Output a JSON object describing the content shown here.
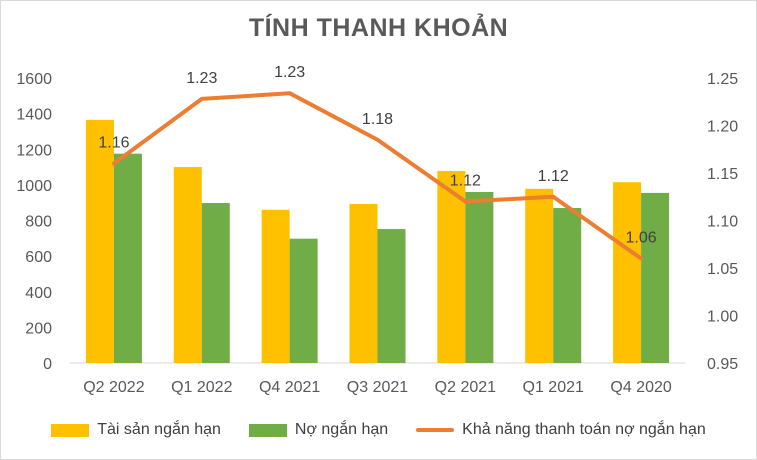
{
  "chart_data": {
    "type": "bar",
    "title": "TÍNH THANH KHOẢN",
    "categories": [
      "Q2 2022",
      "Q1 2022",
      "Q4 2021",
      "Q3 2021",
      "Q2 2021",
      "Q1 2021",
      "Q4 2020"
    ],
    "series": [
      {
        "name": "Tài sản ngắn hạn",
        "type": "bar",
        "axis": "left",
        "color": "#FFC000",
        "values": [
          1365,
          1100,
          860,
          893,
          1078,
          978,
          1015
        ]
      },
      {
        "name": "Nợ ngắn hạn",
        "type": "bar",
        "axis": "left",
        "color": "#70AD47",
        "values": [
          1175,
          898,
          698,
          752,
          960,
          870,
          955
        ]
      },
      {
        "name": "Khả năng thanh toán nợ ngắn hạn",
        "type": "line",
        "axis": "right",
        "color": "#ED7D31",
        "values": [
          1.16,
          1.228,
          1.234,
          1.185,
          1.12,
          1.125,
          1.06
        ],
        "labels": [
          "1.16",
          "1.23",
          "1.23",
          "1.18",
          "1.12",
          "1.12",
          "1.06"
        ]
      }
    ],
    "y_left": {
      "min": 0,
      "max": 1600,
      "ticks": [
        "0",
        "200",
        "400",
        "600",
        "800",
        "1000",
        "1200",
        "1400",
        "1600"
      ]
    },
    "y_right": {
      "min": 0.95,
      "max": 1.25,
      "ticks": [
        "0.95",
        "1.00",
        "1.05",
        "1.10",
        "1.15",
        "1.20",
        "1.25"
      ]
    },
    "grid": false,
    "legend_position": "bottom"
  }
}
